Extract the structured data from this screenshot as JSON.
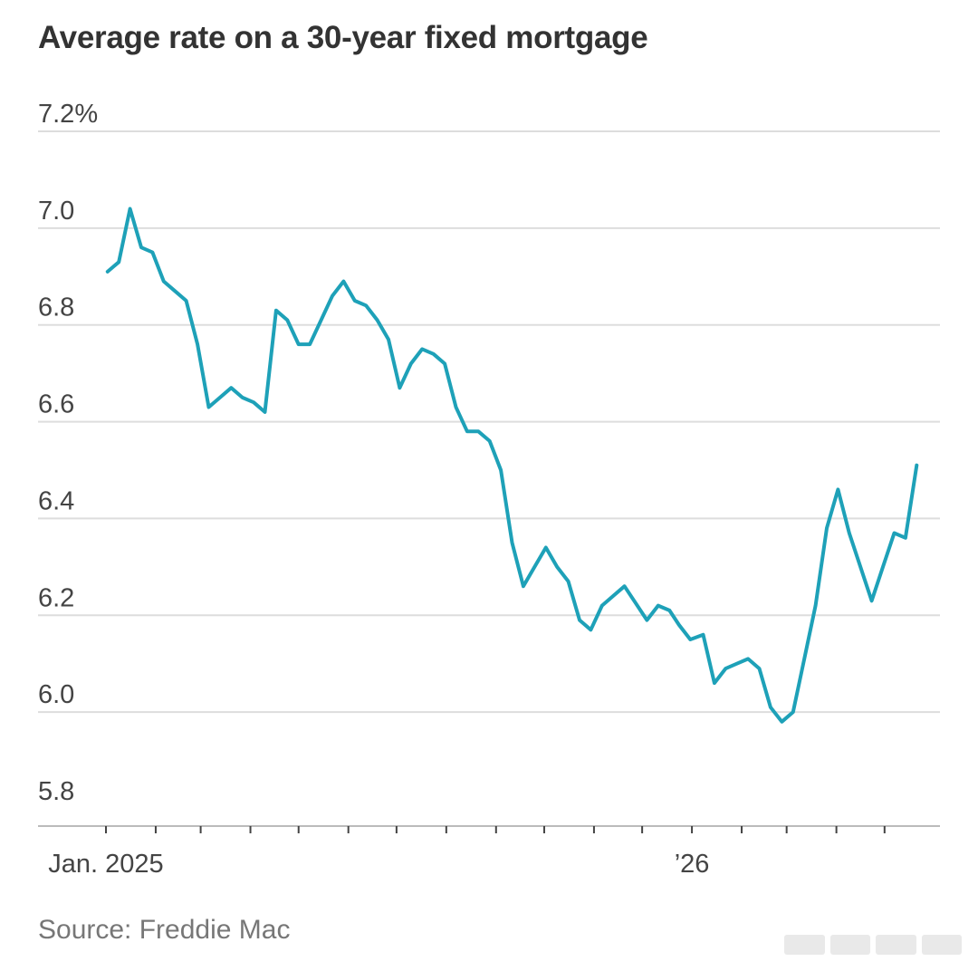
{
  "title": "Average rate on a 30-year fixed mortgage",
  "source": "Source: Freddie Mac",
  "chart_data": {
    "type": "line",
    "title": "Average rate on a 30-year fixed mortgage",
    "xlabel": "",
    "ylabel": "",
    "ylim": [
      5.8,
      7.2
    ],
    "yticks": [
      {
        "value": 7.2,
        "label": "7.2%"
      },
      {
        "value": 7.0,
        "label": "7.0"
      },
      {
        "value": 6.8,
        "label": "6.8"
      },
      {
        "value": 6.6,
        "label": "6.6"
      },
      {
        "value": 6.4,
        "label": "6.4"
      },
      {
        "value": 6.2,
        "label": "6.2"
      },
      {
        "value": 6.0,
        "label": "6.0"
      },
      {
        "value": 5.8,
        "label": "5.8"
      }
    ],
    "xlim": [
      "2025-01-01",
      "2026-05-31"
    ],
    "xtick_dates": [
      "2025-01-01",
      "2025-02-01",
      "2025-03-01",
      "2025-04-01",
      "2025-05-01",
      "2025-06-01",
      "2025-07-01",
      "2025-08-01",
      "2025-09-01",
      "2025-10-01",
      "2025-11-01",
      "2025-12-01",
      "2026-01-01",
      "2026-02-01",
      "2026-03-01",
      "2026-04-01",
      "2026-05-01"
    ],
    "xtick_labels": [
      {
        "date": "2025-01-01",
        "label": "Jan. 2025"
      },
      {
        "date": "2026-01-01",
        "label": "’26"
      }
    ],
    "grid": true,
    "color": "#1ea1b8",
    "series": [
      {
        "x": [
          "2025-01-02",
          "2025-01-09",
          "2025-01-16",
          "2025-01-23",
          "2025-01-30",
          "2025-02-06",
          "2025-02-13",
          "2025-02-20",
          "2025-02-27",
          "2025-03-06",
          "2025-03-13",
          "2025-03-20",
          "2025-03-27",
          "2025-04-03",
          "2025-04-10",
          "2025-04-17",
          "2025-04-24",
          "2025-05-01",
          "2025-05-08",
          "2025-05-15",
          "2025-05-22",
          "2025-05-29",
          "2025-06-05",
          "2025-06-12",
          "2025-06-19",
          "2025-06-26",
          "2025-07-03",
          "2025-07-10",
          "2025-07-17",
          "2025-07-24",
          "2025-07-31",
          "2025-08-07",
          "2025-08-14",
          "2025-08-21",
          "2025-08-28",
          "2025-09-04",
          "2025-09-11",
          "2025-09-18",
          "2025-09-25",
          "2025-10-02",
          "2025-10-09",
          "2025-10-16",
          "2025-10-23",
          "2025-10-30",
          "2025-11-06",
          "2025-11-13",
          "2025-11-20",
          "2025-11-26",
          "2025-12-04",
          "2025-12-11",
          "2025-12-18",
          "2025-12-24",
          "2025-12-31",
          "2026-01-08",
          "2026-01-15",
          "2026-01-22",
          "2026-01-29",
          "2026-02-05",
          "2026-02-12",
          "2026-02-19",
          "2026-02-26",
          "2026-03-05",
          "2026-03-12",
          "2026-03-19",
          "2026-03-26",
          "2026-04-02",
          "2026-04-09",
          "2026-04-16",
          "2026-04-23",
          "2026-04-30",
          "2026-05-07",
          "2026-05-14",
          "2026-05-21"
        ],
        "values": [
          6.91,
          6.93,
          7.04,
          6.96,
          6.95,
          6.89,
          6.87,
          6.85,
          6.76,
          6.63,
          6.65,
          6.67,
          6.65,
          6.64,
          6.62,
          6.83,
          6.81,
          6.76,
          6.76,
          6.81,
          6.86,
          6.89,
          6.85,
          6.84,
          6.81,
          6.77,
          6.67,
          6.72,
          6.75,
          6.74,
          6.72,
          6.63,
          6.58,
          6.58,
          6.56,
          6.5,
          6.35,
          6.26,
          6.3,
          6.34,
          6.3,
          6.27,
          6.19,
          6.17,
          6.22,
          6.24,
          6.26,
          6.23,
          6.19,
          6.22,
          6.21,
          6.18,
          6.15,
          6.16,
          6.06,
          6.09,
          6.1,
          6.11,
          6.09,
          6.01,
          5.98,
          6.0,
          6.11,
          6.22,
          6.38,
          6.46,
          6.37,
          6.3,
          6.23,
          6.3,
          6.37,
          6.36,
          6.51
        ]
      }
    ]
  }
}
